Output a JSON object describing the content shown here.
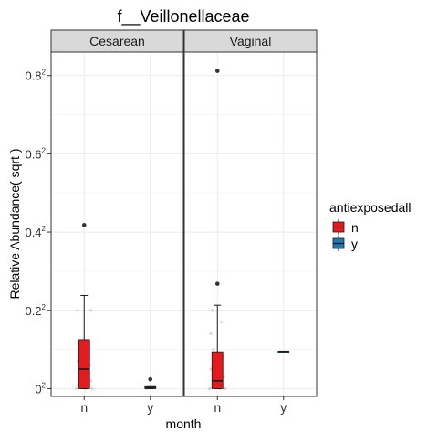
{
  "chart_data": {
    "type": "box",
    "title": "f__Veillonellaceae",
    "xlabel": "month",
    "ylabel": "Relative Abundance( sqrt )",
    "y_scale": "sqrt",
    "y_ticks": [
      {
        "base": "0",
        "exp": "2",
        "value": 0
      },
      {
        "base": "0.2",
        "exp": "2",
        "value": 0.2
      },
      {
        "base": "0.4",
        "exp": "2",
        "value": 0.4
      },
      {
        "base": "0.6",
        "exp": "2",
        "value": 0.6
      },
      {
        "base": "0.8",
        "exp": "2",
        "value": 0.8
      }
    ],
    "ylim_sqrt": [
      -0.02,
      0.86
    ],
    "categories": [
      "n",
      "y"
    ],
    "legend": {
      "title": "antiexposedall",
      "placement": "right",
      "items": [
        {
          "label": "n",
          "color": "#e41a1c"
        },
        {
          "label": "y",
          "color": "#1f78b4"
        }
      ]
    },
    "panels": [
      {
        "strip": "Cesarean",
        "boxes": [
          {
            "category": "n",
            "group": "n",
            "min": 0.0,
            "q1": 0.0,
            "median": 0.05,
            "q3": 0.125,
            "max": 0.238,
            "outliers": [
              0.418
            ]
          },
          {
            "category": "y",
            "group": "y",
            "min": 0.0,
            "q1": 0.0,
            "median": 0.002,
            "q3": 0.005,
            "max": 0.005,
            "outliers": [
              0.024
            ]
          }
        ],
        "jitter": [
          {
            "cat": 0,
            "dx": -0.05,
            "v": 0.2
          },
          {
            "cat": 0,
            "dx": 0.05,
            "v": 0.2
          },
          {
            "cat": 0,
            "dx": -0.04,
            "v": 0.12
          },
          {
            "cat": 0,
            "dx": 0.02,
            "v": 0.1
          },
          {
            "cat": 0,
            "dx": -0.05,
            "v": 0.07
          },
          {
            "cat": 0,
            "dx": 0.04,
            "v": 0.06
          },
          {
            "cat": 0,
            "dx": -0.02,
            "v": 0.04
          },
          {
            "cat": 0,
            "dx": 0.05,
            "v": 0.02
          },
          {
            "cat": 0,
            "dx": -0.04,
            "v": 0.01
          },
          {
            "cat": 0,
            "dx": 0.01,
            "v": 0.0
          },
          {
            "cat": 0,
            "dx": -0.06,
            "v": 0.0
          },
          {
            "cat": 0,
            "dx": 0.06,
            "v": 0.0
          },
          {
            "cat": 1,
            "dx": -0.03,
            "v": 0.0
          },
          {
            "cat": 1,
            "dx": 0.03,
            "v": 0.004
          }
        ]
      },
      {
        "strip": "Vaginal",
        "boxes": [
          {
            "category": "n",
            "group": "n",
            "min": 0.0,
            "q1": 0.0,
            "median": 0.02,
            "q3": 0.094,
            "max": 0.213,
            "outliers": [
              0.268,
              0.812
            ]
          },
          {
            "category": "y",
            "group": "y",
            "min": 0.095,
            "q1": 0.095,
            "median": 0.095,
            "q3": 0.095,
            "max": 0.095,
            "outliers": []
          }
        ],
        "jitter": [
          {
            "cat": 0,
            "dx": -0.04,
            "v": 0.2
          },
          {
            "cat": 0,
            "dx": 0.03,
            "v": 0.17
          },
          {
            "cat": 0,
            "dx": -0.05,
            "v": 0.14
          },
          {
            "cat": 0,
            "dx": -0.03,
            "v": 0.1
          },
          {
            "cat": 0,
            "dx": 0.04,
            "v": 0.08
          },
          {
            "cat": 0,
            "dx": -0.05,
            "v": 0.05
          },
          {
            "cat": 0,
            "dx": 0.05,
            "v": 0.03
          },
          {
            "cat": 0,
            "dx": -0.02,
            "v": 0.01
          },
          {
            "cat": 0,
            "dx": 0.02,
            "v": 0.0
          },
          {
            "cat": 0,
            "dx": -0.06,
            "v": 0.0
          },
          {
            "cat": 0,
            "dx": 0.06,
            "v": 0.0
          }
        ]
      }
    ]
  }
}
